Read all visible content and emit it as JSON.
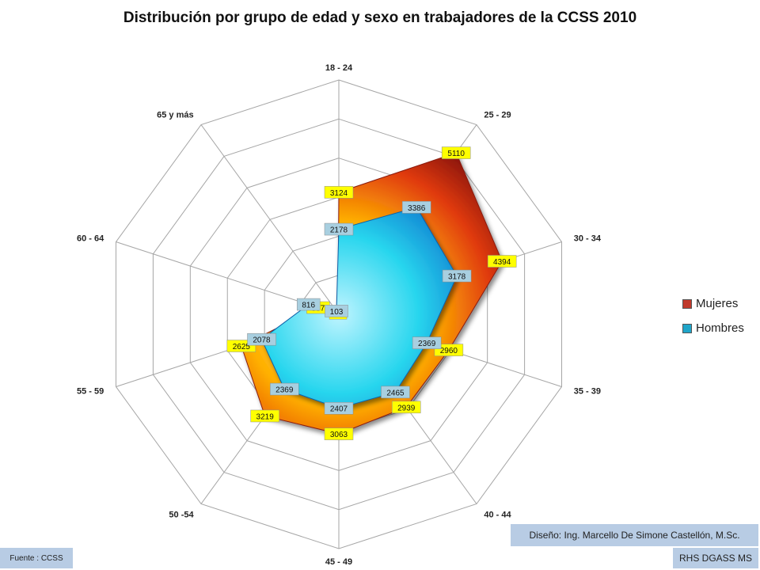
{
  "chart_data": {
    "type": "radar",
    "title": "Distribución por grupo de edad y sexo en trabajadores de la CCSS 2010",
    "categories": [
      "18 - 24",
      "25 - 29",
      "30 - 34",
      "35 - 39",
      "40 - 44",
      "45 - 49",
      "50 -54",
      "55 - 59",
      "60 - 64",
      "65 y más"
    ],
    "series": [
      {
        "name": "Mujeres",
        "values": [
          3124,
          5110,
          4394,
          2960,
          2939,
          3063,
          3219,
          2625,
          557,
          34
        ],
        "label_color": "#ffff00"
      },
      {
        "name": "Hombres",
        "values": [
          2178,
          3386,
          3178,
          2369,
          2465,
          2407,
          2369,
          2078,
          816,
          103
        ],
        "label_color": "#a8cfe0"
      }
    ],
    "rlim": [
      0,
      6000
    ],
    "grid": true,
    "legend_position": "right"
  },
  "legend": {
    "items": [
      {
        "label": "Mujeres",
        "color": "#c0392b"
      },
      {
        "label": "Hombres",
        "color": "#1fa5c9"
      }
    ]
  },
  "footer": {
    "credit": "Diseño: Ing. Marcello De Simone Castellón, M.Sc.",
    "source": "Fuente : CCSS",
    "department": "RHS DGASS MS"
  }
}
